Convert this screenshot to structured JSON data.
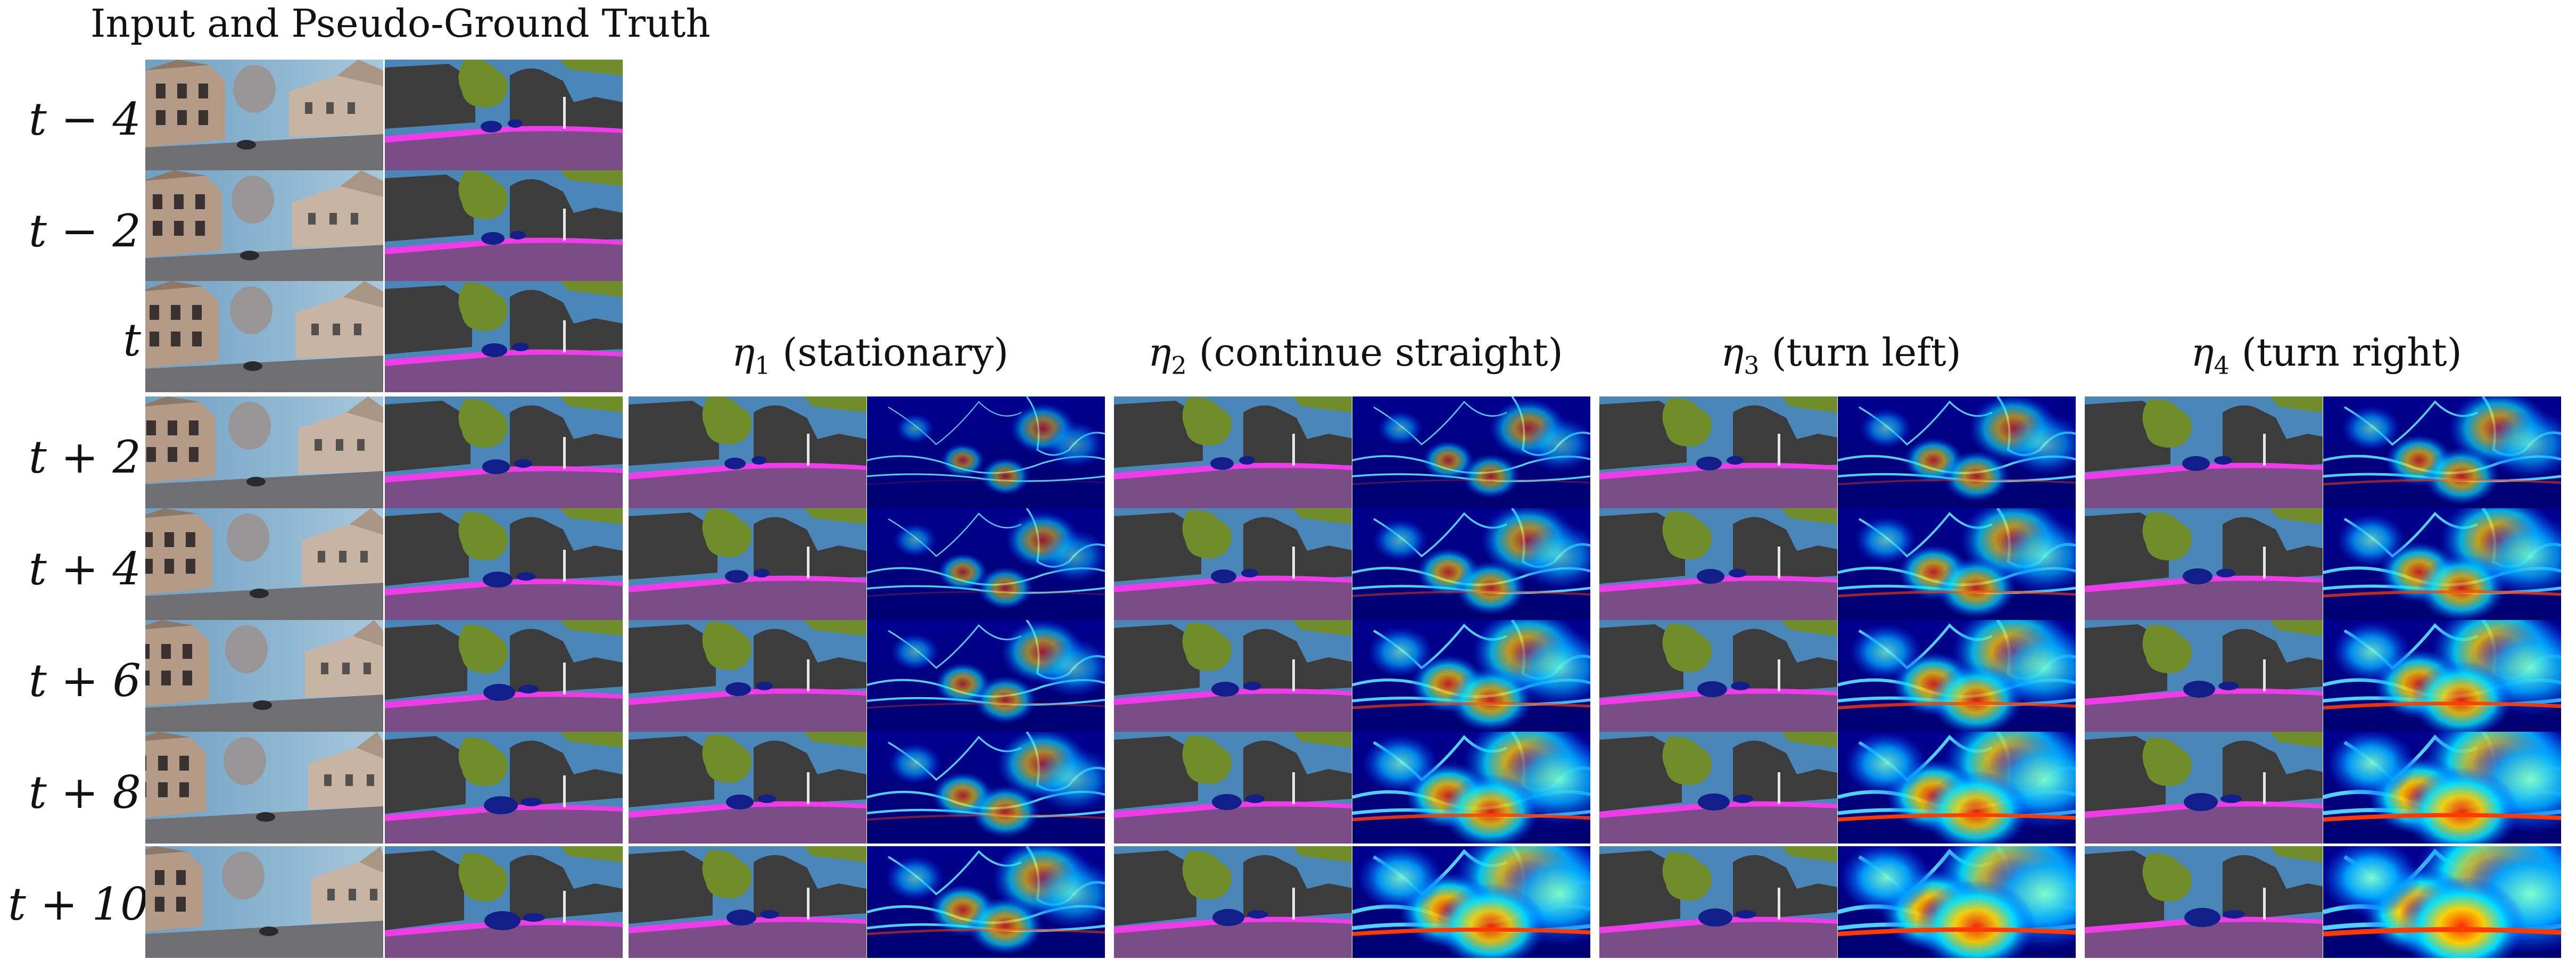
{
  "figure": {
    "input_title": "Input and Pseudo-Ground Truth",
    "row_labels": [
      "t − 4",
      "t − 2",
      "t",
      "t + 2",
      "t + 4",
      "t + 6",
      "t + 8",
      "t + 10"
    ],
    "columns": [
      {
        "eta": "η",
        "sub": "1",
        "caption": " (stationary)"
      },
      {
        "eta": "η",
        "sub": "2",
        "caption": " (continue straight)"
      },
      {
        "eta": "η",
        "sub": "3",
        "caption": " (turn left)"
      },
      {
        "eta": "η",
        "sub": "4",
        "caption": " (turn right)"
      }
    ],
    "colors": {
      "sky": "#4b86b9",
      "building": "#3c3c3c",
      "vegetation": "#6f8e2b",
      "road": "#7a4d86",
      "sidewalk": "#ef3ce8",
      "vehicle": "#121f8a",
      "photo_sky": "#8fb6cf",
      "photo_wall": "#b39b88",
      "photo_road": "#6f6f72",
      "heat_low": "#00008f",
      "heat_mid": "#00a6ff",
      "heat_high": "#ff2a00"
    }
  }
}
